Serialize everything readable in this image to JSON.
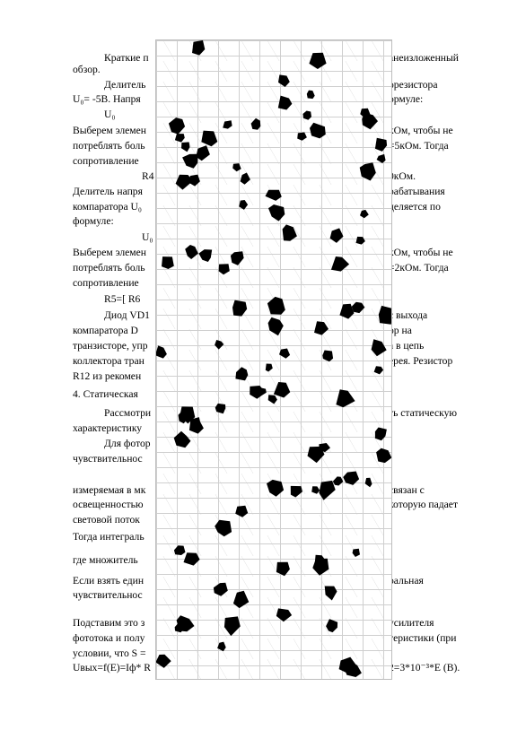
{
  "document": {
    "lines": [
      {
        "left": "Краткие п",
        "right": "анеизложенный"
      },
      {
        "left": "обзор.",
        "right": ""
      },
      {
        "left": "Делитель",
        "right": "орезистора"
      },
      {
        "left": "U₀= -5В. Напря",
        "right": "ормуле:"
      },
      {
        "left": "U₀",
        "right": ""
      },
      {
        "left": "Выберем элемен",
        "right": "кОм, чтобы не"
      },
      {
        "left": "потреблять боль",
        "right": "=5кОм. Тогда"
      },
      {
        "left": "сопротивление",
        "right": ""
      },
      {
        "left": "R4",
        "right": "0кОм."
      },
      {
        "left": "Делитель напря",
        "right": "рабатывания"
      },
      {
        "left": "компаратора  U₀",
        "right": "деляется по"
      },
      {
        "left": "формуле:",
        "right": ""
      },
      {
        "left": "U₀",
        "right": ""
      },
      {
        "left": "Выберем элемен",
        "right": "кОм, чтобы не"
      },
      {
        "left": "потреблять боль",
        "right": "=2кОм. Тогда"
      },
      {
        "left": "сопротивление",
        "right": ""
      },
      {
        "left": "R5=[ R6",
        "right": ""
      },
      {
        "left": "Диод VD1",
        "right": "с выхода"
      },
      {
        "left": "компаратора  D",
        "right": "ор на"
      },
      {
        "left": "транзисторе, упр",
        "right": "а в цепь"
      },
      {
        "left": "коллектора тран",
        "right": "ерея. Резистор"
      },
      {
        "left": "R12 из рекомен",
        "right": ""
      },
      {
        "left": "4. Статическая",
        "right": ""
      },
      {
        "left": "Рассмотри",
        "right": "ть  статическую"
      },
      {
        "left": "характеристику",
        "right": ""
      },
      {
        "left": "Для фотор",
        "right": ""
      },
      {
        "left": "чувствительнос",
        "right": ""
      },
      {
        "left": "измеряемая в мк",
        "right": "связан с"
      },
      {
        "left": "освещенностью",
        "right": "которую падает"
      },
      {
        "left": "световой поток",
        "right": ""
      },
      {
        "left": "Тогда интеграль",
        "right": ""
      },
      {
        "left": "где множитель",
        "right": ""
      },
      {
        "left": "Если взять един",
        "right": "ральная"
      },
      {
        "left": "чувствительнос",
        "right": ""
      },
      {
        "left": "Подставим это з",
        "right": "усилителя"
      },
      {
        "left": "фототока и полу",
        "right": "теристики (при"
      },
      {
        "left": "условии, что S =",
        "right": ""
      },
      {
        "left": "Uвых=f(E)=Iф* R",
        "right": "2=3*10⁻³*E (В)."
      }
    ]
  }
}
